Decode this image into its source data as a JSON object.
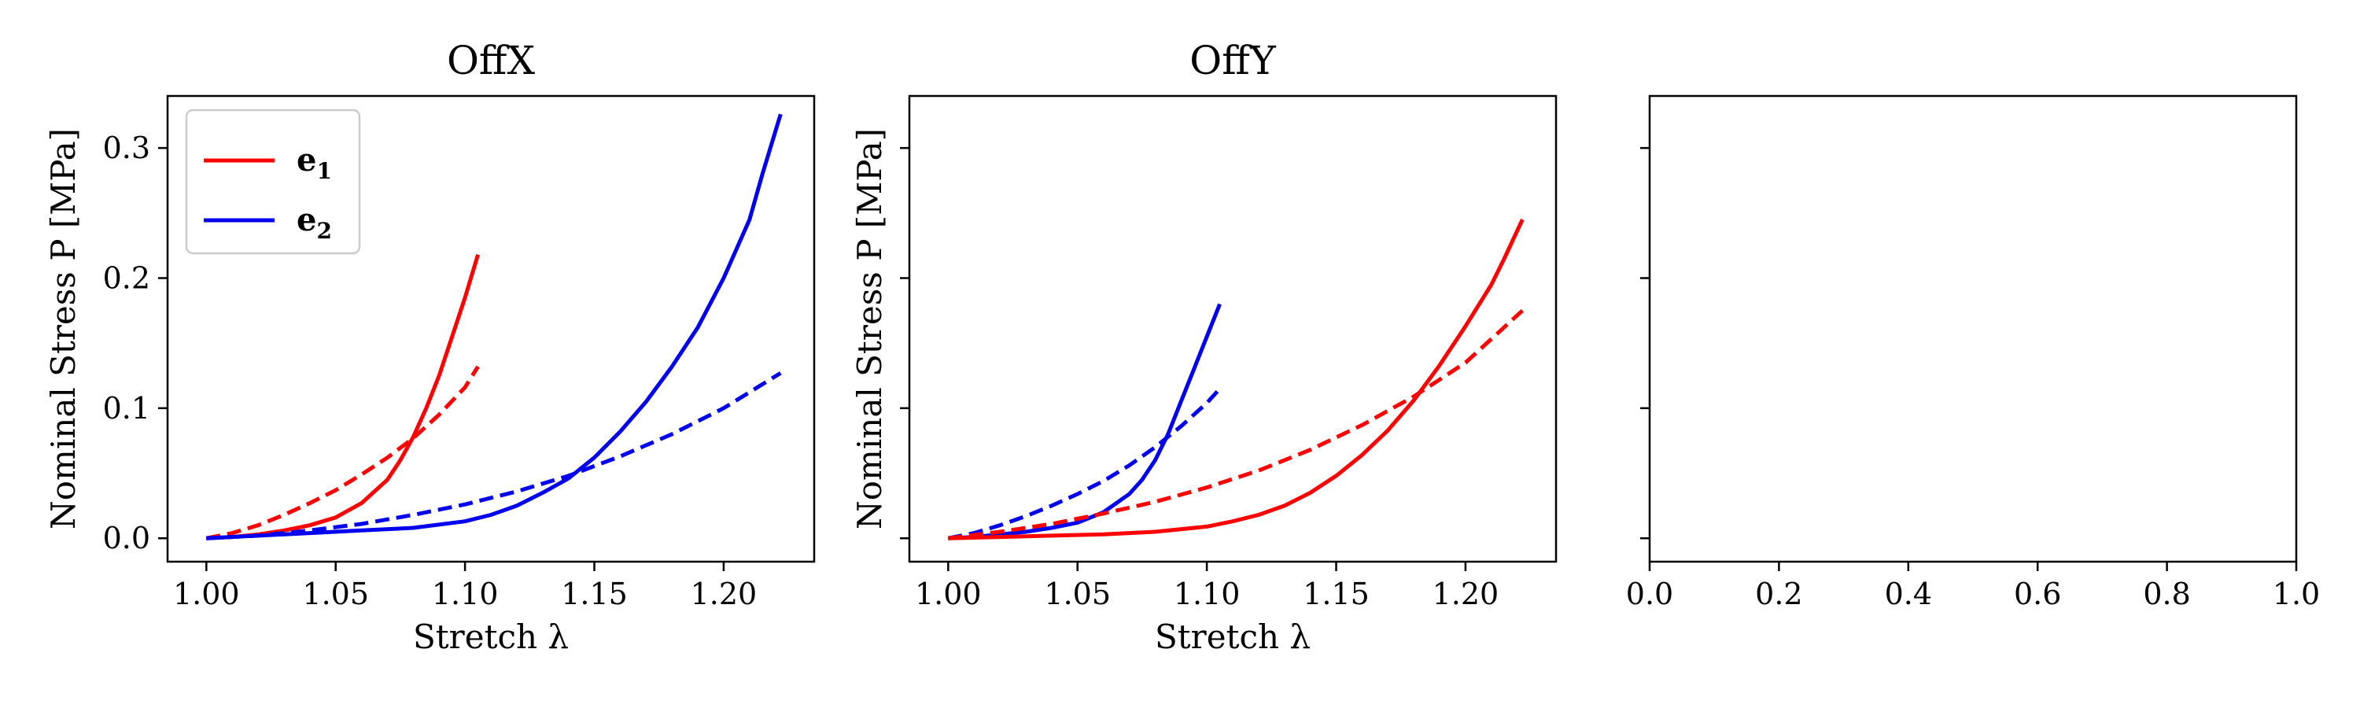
{
  "chart_data": [
    {
      "type": "line",
      "title": "OffX",
      "xlabel": "Stretch λ",
      "ylabel": "Nominal Stress P [MPa]",
      "xlim": [
        0.985,
        1.235
      ],
      "ylim": [
        -0.018,
        0.34
      ],
      "xticks": [
        "1.00",
        "1.05",
        "1.10",
        "1.15",
        "1.20"
      ],
      "xtick_values": [
        1.0,
        1.05,
        1.1,
        1.15,
        1.2
      ],
      "yticks": [
        "0.0",
        "0.1",
        "0.2",
        "0.3"
      ],
      "ytick_values": [
        0.0,
        0.1,
        0.2,
        0.3
      ],
      "show_ytick_labels": true,
      "legend": {
        "placement": "top-left",
        "entries": [
          {
            "label": "e",
            "sub": "1",
            "color": "#ff0000"
          },
          {
            "label": "e",
            "sub": "2",
            "color": "#0000ee"
          }
        ]
      },
      "series": [
        {
          "color": "#ff0000",
          "style": "solid",
          "x": [
            1.0,
            1.01,
            1.02,
            1.03,
            1.04,
            1.05,
            1.06,
            1.07,
            1.075,
            1.08,
            1.085,
            1.09,
            1.095,
            1.1,
            1.105
          ],
          "y": [
            0.0,
            0.001,
            0.003,
            0.006,
            0.01,
            0.016,
            0.027,
            0.045,
            0.06,
            0.078,
            0.1,
            0.125,
            0.155,
            0.185,
            0.218
          ]
        },
        {
          "color": "#ff0000",
          "style": "dashed",
          "x": [
            1.0,
            1.01,
            1.02,
            1.03,
            1.04,
            1.05,
            1.06,
            1.07,
            1.08,
            1.09,
            1.1,
            1.105
          ],
          "y": [
            0.0,
            0.004,
            0.01,
            0.018,
            0.027,
            0.037,
            0.049,
            0.062,
            0.077,
            0.095,
            0.116,
            0.132
          ]
        },
        {
          "color": "#0000ee",
          "style": "solid",
          "x": [
            1.0,
            1.02,
            1.04,
            1.06,
            1.08,
            1.1,
            1.11,
            1.12,
            1.13,
            1.14,
            1.15,
            1.16,
            1.17,
            1.18,
            1.19,
            1.2,
            1.21,
            1.215,
            1.222
          ],
          "y": [
            0.0,
            0.002,
            0.004,
            0.006,
            0.008,
            0.013,
            0.018,
            0.025,
            0.035,
            0.046,
            0.062,
            0.082,
            0.105,
            0.132,
            0.162,
            0.2,
            0.245,
            0.28,
            0.326
          ]
        },
        {
          "color": "#0000ee",
          "style": "dashed",
          "x": [
            1.0,
            1.02,
            1.04,
            1.06,
            1.08,
            1.1,
            1.12,
            1.14,
            1.16,
            1.18,
            1.2,
            1.222
          ],
          "y": [
            0.0,
            0.002,
            0.006,
            0.011,
            0.018,
            0.026,
            0.036,
            0.048,
            0.063,
            0.08,
            0.1,
            0.127
          ]
        }
      ]
    },
    {
      "type": "line",
      "title": "OffY",
      "xlabel": "Stretch λ",
      "ylabel": "Nominal Stress P [MPa]",
      "xlim": [
        0.985,
        1.235
      ],
      "ylim": [
        -0.018,
        0.34
      ],
      "xticks": [
        "1.00",
        "1.05",
        "1.10",
        "1.15",
        "1.20"
      ],
      "xtick_values": [
        1.0,
        1.05,
        1.1,
        1.15,
        1.2
      ],
      "yticks": [],
      "ytick_values": [
        0.0,
        0.1,
        0.2,
        0.3
      ],
      "show_ytick_labels": false,
      "series": [
        {
          "color": "#0000ee",
          "style": "solid",
          "x": [
            1.0,
            1.01,
            1.02,
            1.03,
            1.04,
            1.05,
            1.06,
            1.07,
            1.075,
            1.08,
            1.085,
            1.09,
            1.095,
            1.1,
            1.105
          ],
          "y": [
            0.0,
            0.001,
            0.003,
            0.005,
            0.008,
            0.012,
            0.02,
            0.034,
            0.045,
            0.06,
            0.08,
            0.105,
            0.13,
            0.155,
            0.18
          ]
        },
        {
          "color": "#0000ee",
          "style": "dashed",
          "x": [
            1.0,
            1.01,
            1.02,
            1.03,
            1.04,
            1.05,
            1.06,
            1.07,
            1.08,
            1.09,
            1.1,
            1.105
          ],
          "y": [
            0.0,
            0.004,
            0.01,
            0.017,
            0.025,
            0.034,
            0.044,
            0.056,
            0.07,
            0.086,
            0.104,
            0.115
          ]
        },
        {
          "color": "#ff0000",
          "style": "solid",
          "x": [
            1.0,
            1.02,
            1.04,
            1.06,
            1.08,
            1.1,
            1.11,
            1.12,
            1.13,
            1.14,
            1.15,
            1.16,
            1.17,
            1.18,
            1.19,
            1.2,
            1.21,
            1.215,
            1.222
          ],
          "y": [
            0.0,
            0.001,
            0.002,
            0.003,
            0.005,
            0.009,
            0.013,
            0.018,
            0.025,
            0.035,
            0.048,
            0.064,
            0.083,
            0.106,
            0.133,
            0.163,
            0.195,
            0.215,
            0.245
          ]
        },
        {
          "color": "#ff0000",
          "style": "dashed",
          "x": [
            1.0,
            1.02,
            1.04,
            1.06,
            1.08,
            1.1,
            1.12,
            1.14,
            1.16,
            1.18,
            1.2,
            1.222
          ],
          "y": [
            0.0,
            0.005,
            0.011,
            0.019,
            0.028,
            0.039,
            0.052,
            0.068,
            0.087,
            0.109,
            0.135,
            0.175
          ]
        }
      ]
    },
    {
      "type": "line",
      "title": "",
      "xlabel": "",
      "ylabel": "",
      "xlim": [
        0.0,
        1.0
      ],
      "ylim": [
        -0.018,
        0.34
      ],
      "xticks": [
        "0.0",
        "0.2",
        "0.4",
        "0.6",
        "0.8",
        "1.0"
      ],
      "xtick_values": [
        0.0,
        0.2,
        0.4,
        0.6,
        0.8,
        1.0
      ],
      "yticks": [],
      "ytick_values": [
        0.0,
        0.1,
        0.2,
        0.3
      ],
      "show_ytick_labels": false,
      "series": []
    }
  ]
}
